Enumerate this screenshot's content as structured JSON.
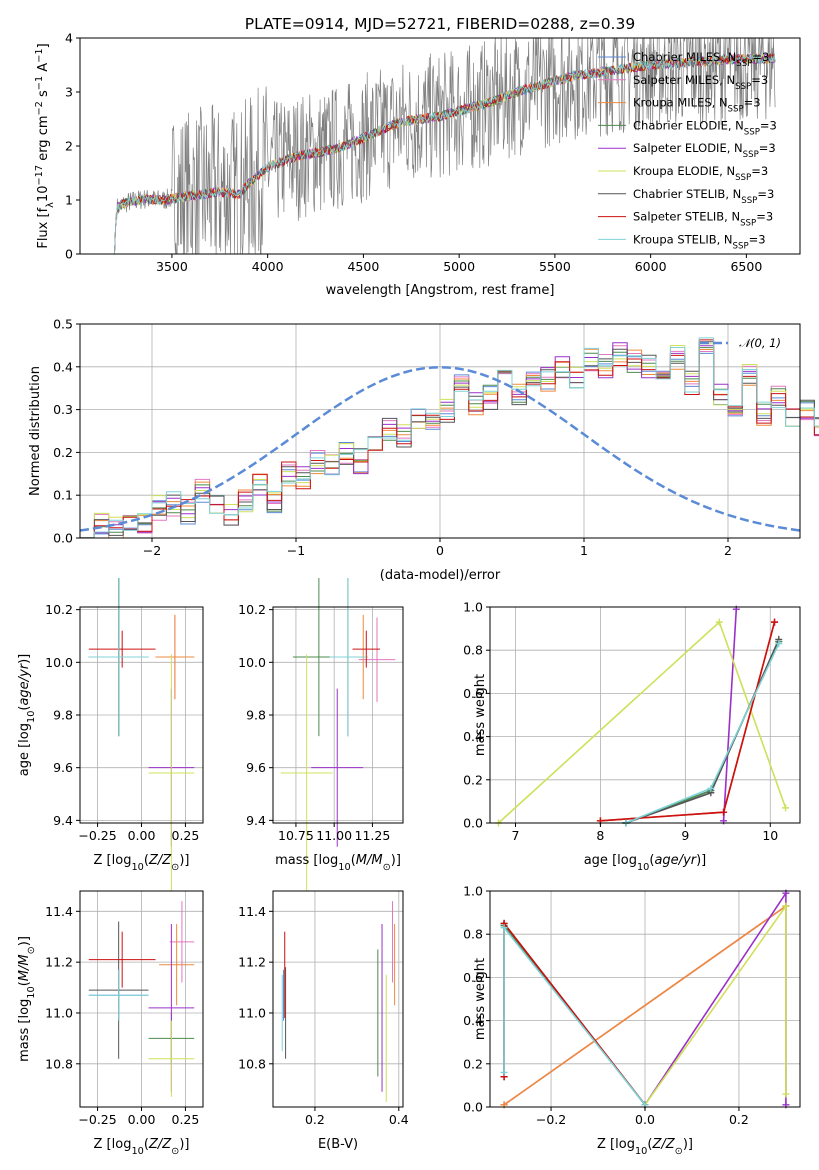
{
  "figure_title": "PLATE=0914, MJD=52721, FIBERID=0288, z=0.39",
  "colors": {
    "Chabrier MILES": "#5b8bd6",
    "Salpeter MILES": "#e377c2",
    "Kroupa MILES": "#ee8a3c",
    "Chabrier ELODIE": "#4e8a4e",
    "Salpeter ELODIE": "#9b30c9",
    "Kroupa ELODIE": "#cfe05a",
    "Chabrier STELIB": "#555555",
    "Salpeter STELIB": "#cc1111",
    "Kroupa STELIB": "#7fd3d6",
    "data": "#808080",
    "normal": "#5b8bd6"
  },
  "chart_data": [
    {
      "id": "spectrum",
      "type": "line",
      "title": "PLATE=0914, MJD=52721, FIBERID=0288, z=0.39",
      "xlabel": "wavelength [Angstrom, rest frame]",
      "ylabel": "Flux [f_λ 10^-17 erg cm^-2 s^-1 A^-1]",
      "xlim": [
        3020,
        6780
      ],
      "ylim": [
        0,
        4
      ],
      "xticks": [
        "3500",
        "4000",
        "4500",
        "5000",
        "5500",
        "6000",
        "6500"
      ],
      "yticks": [
        "0",
        "1",
        "2",
        "3",
        "4"
      ],
      "legend_position": "upper right",
      "grid": false,
      "legend": [
        "Chabrier MILES, N_SSP=3",
        "Salpeter MILES, N_SSP=3",
        "Kroupa MILES, N_SSP=3",
        "Chabrier ELODIE, N_SSP=3",
        "Salpeter ELODIE, N_SSP=3",
        "Kroupa ELODIE, N_SSP=3",
        "Chabrier STELIB, N_SSP=3",
        "Salpeter STELIB, N_SSP=3",
        "Kroupa STELIB, N_SSP=3"
      ],
      "model_continuum": [
        [
          3200,
          0.0
        ],
        [
          3210,
          0.85
        ],
        [
          3260,
          0.95
        ],
        [
          3350,
          1.02
        ],
        [
          3450,
          1.0
        ],
        [
          3550,
          1.05
        ],
        [
          3650,
          1.1
        ],
        [
          3750,
          1.15
        ],
        [
          3850,
          1.1
        ],
        [
          3900,
          1.3
        ],
        [
          3950,
          1.45
        ],
        [
          4000,
          1.6
        ],
        [
          4100,
          1.75
        ],
        [
          4200,
          1.85
        ],
        [
          4300,
          1.9
        ],
        [
          4400,
          2.0
        ],
        [
          4500,
          2.15
        ],
        [
          4600,
          2.3
        ],
        [
          4700,
          2.45
        ],
        [
          4800,
          2.5
        ],
        [
          4900,
          2.55
        ],
        [
          5000,
          2.65
        ],
        [
          5100,
          2.75
        ],
        [
          5200,
          2.85
        ],
        [
          5300,
          3.0
        ],
        [
          5400,
          3.1
        ],
        [
          5500,
          3.2
        ],
        [
          5600,
          3.3
        ],
        [
          5700,
          3.35
        ],
        [
          5800,
          3.4
        ],
        [
          5900,
          3.45
        ],
        [
          6000,
          3.5
        ],
        [
          6200,
          3.55
        ],
        [
          6400,
          3.6
        ],
        [
          6600,
          3.62
        ]
      ],
      "data_noise": "grey observed spectrum with large scatter (roughly +-1.5) around the models above 3500 A"
    },
    {
      "id": "residuals",
      "type": "bar",
      "xlabel": "(data-model)/error",
      "ylabel": "Normed distribution",
      "xlim": [
        -2.5,
        2.5
      ],
      "ylim": [
        0,
        0.5
      ],
      "xticks": [
        "−2",
        "−1",
        "0",
        "1",
        "2"
      ],
      "yticks": [
        "0.0",
        "0.1",
        "0.2",
        "0.3",
        "0.4",
        "0.5"
      ],
      "grid": true,
      "legend": [
        "𝒩(0, 1)"
      ],
      "legend_position": "upper right",
      "bin_width": 0.1,
      "bin_start": -2.5,
      "histogram_values": [
        0.03,
        0.035,
        0.025,
        0.04,
        0.03,
        0.07,
        0.08,
        0.06,
        0.11,
        0.07,
        0.055,
        0.09,
        0.12,
        0.085,
        0.15,
        0.14,
        0.18,
        0.165,
        0.2,
        0.18,
        0.21,
        0.25,
        0.24,
        0.28,
        0.27,
        0.3,
        0.36,
        0.31,
        0.33,
        0.37,
        0.34,
        0.38,
        0.37,
        0.4,
        0.38,
        0.42,
        0.4,
        0.43,
        0.41,
        0.4,
        0.38,
        0.42,
        0.36,
        0.44,
        0.33,
        0.3,
        0.38,
        0.29,
        0.33,
        0.28,
        0.3,
        0.26,
        0.27,
        0.25,
        0.22,
        0.2,
        0.21,
        0.18,
        0.2,
        0.15,
        0.14,
        0.12,
        0.13,
        0.1,
        0.08,
        0.09,
        0.06,
        0.07,
        0.05,
        0.06,
        0.05,
        0.045,
        0.05,
        0.04,
        0.06,
        0.05,
        0.04,
        0.045,
        0.04,
        0.035
      ]
    },
    {
      "id": "age_vs_Z",
      "type": "scatter",
      "xlabel": "Z [log10(Z/Z☉)]",
      "ylabel": "age [log10(age/yr)]",
      "xlim": [
        -0.35,
        0.35
      ],
      "ylim": [
        9.39,
        10.21
      ],
      "xticks": [
        "−0.25",
        "0.00",
        "0.25"
      ],
      "yticks": [
        "9.4",
        "9.6",
        "9.8",
        "10.0",
        "10.2"
      ],
      "grid": true,
      "points": [
        {
          "model": "Chabrier MILES",
          "x": -0.13,
          "xerr": 0.17,
          "y": 10.02,
          "yerr": 0.3
        },
        {
          "model": "Salpeter MILES",
          "x": 0.19,
          "xerr": 0.11,
          "y": 10.02,
          "yerr": 0.16
        },
        {
          "model": "Kroupa MILES",
          "x": 0.19,
          "xerr": 0.11,
          "y": 10.02,
          "yerr": 0.16
        },
        {
          "model": "Chabrier ELODIE",
          "x": -0.13,
          "xerr": 0.17,
          "y": 10.02,
          "yerr": 0.3
        },
        {
          "model": "Salpeter ELODIE",
          "x": 0.17,
          "xerr": 0.13,
          "y": 9.6,
          "yerr": 0.3
        },
        {
          "model": "Kroupa ELODIE",
          "x": 0.17,
          "xerr": 0.13,
          "y": 9.58,
          "yerr": 0.45
        },
        {
          "model": "Chabrier STELIB",
          "x": -0.13,
          "xerr": 0.17,
          "y": 10.02,
          "yerr": 0.3
        },
        {
          "model": "Salpeter STELIB",
          "x": -0.11,
          "xerr": 0.19,
          "y": 10.05,
          "yerr": 0.07
        },
        {
          "model": "Kroupa STELIB",
          "x": -0.13,
          "xerr": 0.17,
          "y": 10.02,
          "yerr": 0.3
        }
      ]
    },
    {
      "id": "age_vs_mass",
      "type": "scatter",
      "xlabel": "mass [log10(M/M☉)]",
      "ylabel": "",
      "xlim": [
        10.6,
        11.45
      ],
      "ylim": [
        9.39,
        10.21
      ],
      "xticks": [
        "10.75",
        "11.00",
        "11.25"
      ],
      "yticks": [
        "9.4",
        "9.6",
        "9.8",
        "10.0",
        "10.2"
      ],
      "grid": true,
      "points": [
        {
          "model": "Chabrier MILES",
          "x": 11.09,
          "xerr": 0.12,
          "y": 10.02,
          "yerr": 0.3
        },
        {
          "model": "Salpeter MILES",
          "x": 11.28,
          "xerr": 0.12,
          "y": 10.01,
          "yerr": 0.16
        },
        {
          "model": "Kroupa MILES",
          "x": 11.19,
          "xerr": 0.03,
          "y": 10.02,
          "yerr": 0.16
        },
        {
          "model": "Chabrier ELODIE",
          "x": 10.9,
          "xerr": 0.17,
          "y": 10.02,
          "yerr": 0.3
        },
        {
          "model": "Salpeter ELODIE",
          "x": 11.02,
          "xerr": 0.17,
          "y": 9.6,
          "yerr": 0.3
        },
        {
          "model": "Kroupa ELODIE",
          "x": 10.82,
          "xerr": 0.17,
          "y": 9.58,
          "yerr": 0.45
        },
        {
          "model": "Chabrier STELIB",
          "x": 11.09,
          "xerr": 0.07,
          "y": 10.02,
          "yerr": 0.3
        },
        {
          "model": "Salpeter STELIB",
          "x": 11.21,
          "xerr": 0.09,
          "y": 10.05,
          "yerr": 0.07
        },
        {
          "model": "Kroupa STELIB",
          "x": 11.09,
          "xerr": 0.12,
          "y": 10.02,
          "yerr": 0.3
        }
      ]
    },
    {
      "id": "mass_weight_vs_age",
      "type": "line",
      "xlabel": "age [log10(age/yr)]",
      "ylabel": "mass weight",
      "xlim": [
        6.7,
        10.35
      ],
      "ylim": [
        0,
        1
      ],
      "xticks": [
        "7",
        "8",
        "9",
        "10"
      ],
      "yticks": [
        "0.0",
        "0.2",
        "0.4",
        "0.6",
        "0.8",
        "1.0"
      ],
      "grid": true,
      "series": [
        {
          "name": "Chabrier MILES",
          "x": [
            8.3,
            9.3,
            10.1
          ],
          "y": [
            0.0,
            0.15,
            0.84
          ]
        },
        {
          "name": "Salpeter MILES",
          "x": [
            8.0,
            9.45,
            10.05
          ],
          "y": [
            0.01,
            0.05,
            0.93
          ]
        },
        {
          "name": "Kroupa MILES",
          "x": [
            8.0,
            9.45,
            10.05
          ],
          "y": [
            0.01,
            0.05,
            0.93
          ]
        },
        {
          "name": "Chabrier ELODIE",
          "x": [
            8.3,
            9.3,
            10.1
          ],
          "y": [
            0.0,
            0.15,
            0.84
          ]
        },
        {
          "name": "Salpeter ELODIE",
          "x": [
            9.45,
            9.6
          ],
          "y": [
            0.01,
            0.99
          ]
        },
        {
          "name": "Kroupa ELODIE",
          "x": [
            6.8,
            9.4,
            10.18
          ],
          "y": [
            0.0,
            0.93,
            0.07
          ]
        },
        {
          "name": "Chabrier STELIB",
          "x": [
            8.3,
            9.3,
            10.1
          ],
          "y": [
            0.0,
            0.14,
            0.85
          ]
        },
        {
          "name": "Salpeter STELIB",
          "x": [
            8.0,
            9.45,
            10.05
          ],
          "y": [
            0.01,
            0.05,
            0.93
          ]
        },
        {
          "name": "Kroupa STELIB",
          "x": [
            8.3,
            9.3,
            10.1
          ],
          "y": [
            0.0,
            0.16,
            0.83
          ]
        }
      ]
    },
    {
      "id": "mass_vs_Z",
      "type": "scatter",
      "xlabel": "Z [log10(Z/Z☉)]",
      "ylabel": "mass [log10(M/M☉)]",
      "xlim": [
        -0.35,
        0.35
      ],
      "ylim": [
        10.63,
        11.48
      ],
      "xticks": [
        "−0.25",
        "0.00",
        "0.25"
      ],
      "yticks": [
        "10.8",
        "11.0",
        "11.2",
        "11.4"
      ],
      "grid": true,
      "points": [
        {
          "model": "Chabrier MILES",
          "x": -0.13,
          "xerr": 0.17,
          "y": 11.07,
          "yerr": 0.1
        },
        {
          "model": "Salpeter MILES",
          "x": 0.23,
          "xerr": 0.07,
          "y": 11.28,
          "yerr": 0.16
        },
        {
          "model": "Kroupa MILES",
          "x": 0.2,
          "xerr": 0.1,
          "y": 11.19,
          "yerr": 0.16
        },
        {
          "model": "Chabrier ELODIE",
          "x": 0.17,
          "xerr": 0.13,
          "y": 10.9,
          "yerr": 0.1
        },
        {
          "model": "Salpeter ELODIE",
          "x": 0.17,
          "xerr": 0.13,
          "y": 11.02,
          "yerr": 0.33
        },
        {
          "model": "Kroupa ELODIE",
          "x": 0.17,
          "xerr": 0.13,
          "y": 10.82,
          "yerr": 0.15
        },
        {
          "model": "Chabrier STELIB",
          "x": -0.13,
          "xerr": 0.17,
          "y": 11.09,
          "yerr": 0.27
        },
        {
          "model": "Salpeter STELIB",
          "x": -0.11,
          "xerr": 0.19,
          "y": 11.21,
          "yerr": 0.11
        },
        {
          "model": "Kroupa STELIB",
          "x": -0.13,
          "xerr": 0.17,
          "y": 11.07,
          "yerr": 0.1
        }
      ]
    },
    {
      "id": "mass_vs_ebv",
      "type": "scatter",
      "xlabel": "E(B-V)",
      "ylabel": "",
      "xlim": [
        0.1,
        0.41
      ],
      "ylim": [
        10.63,
        11.48
      ],
      "xticks": [
        "0.2",
        "0.4"
      ],
      "yticks": [
        "10.8",
        "11.0",
        "11.2",
        "11.4"
      ],
      "grid": true,
      "points": [
        {
          "model": "Chabrier MILES",
          "x": 0.125,
          "y": 11.07,
          "yerr": 0.1
        },
        {
          "model": "Salpeter MILES",
          "x": 0.385,
          "y": 11.28,
          "yerr": 0.16
        },
        {
          "model": "Kroupa MILES",
          "x": 0.39,
          "y": 11.19,
          "yerr": 0.16
        },
        {
          "model": "Chabrier ELODIE",
          "x": 0.35,
          "y": 11.0,
          "yerr": 0.25
        },
        {
          "model": "Salpeter ELODIE",
          "x": 0.36,
          "y": 11.02,
          "yerr": 0.33
        },
        {
          "model": "Kroupa ELODIE",
          "x": 0.37,
          "y": 10.9,
          "yerr": 0.25
        },
        {
          "model": "Chabrier STELIB",
          "x": 0.13,
          "y": 11.0,
          "yerr": 0.18
        },
        {
          "model": "Salpeter STELIB",
          "x": 0.128,
          "y": 11.15,
          "yerr": 0.17
        },
        {
          "model": "Kroupa STELIB",
          "x": 0.122,
          "y": 11.0,
          "yerr": 0.15
        }
      ]
    },
    {
      "id": "mass_weight_vs_Z",
      "type": "line",
      "xlabel": "Z [log10(Z/Z☉)]",
      "ylabel": "mass weight",
      "xlim": [
        -0.33,
        0.33
      ],
      "ylim": [
        0,
        1
      ],
      "xticks": [
        "−0.2",
        "0.0",
        "0.2"
      ],
      "yticks": [
        "0.0",
        "0.2",
        "0.4",
        "0.6",
        "0.8",
        "1.0"
      ],
      "grid": true,
      "series": [
        {
          "name": "Chabrier MILES",
          "x": [
            -0.3,
            0.0
          ],
          "y": [
            0.84,
            0.01
          ]
        },
        {
          "name": "Salpeter MILES",
          "x": [
            -0.3,
            0.3
          ],
          "y": [
            0.01,
            0.93
          ]
        },
        {
          "name": "Kroupa MILES",
          "x": [
            -0.3,
            0.3
          ],
          "y": [
            0.01,
            0.93
          ]
        },
        {
          "name": "Chabrier ELODIE",
          "x": [
            -0.3,
            0.0
          ],
          "y": [
            0.84,
            0.01
          ]
        },
        {
          "name": "Salpeter ELODIE",
          "x": [
            0.0,
            0.3,
            0.3
          ],
          "y": [
            0.01,
            0.99,
            0.01
          ]
        },
        {
          "name": "Kroupa ELODIE",
          "x": [
            0.0,
            0.3,
            0.3
          ],
          "y": [
            0.01,
            0.93,
            0.06
          ]
        },
        {
          "name": "Chabrier STELIB",
          "x": [
            -0.3,
            -0.3,
            0.0
          ],
          "y": [
            0.14,
            0.85,
            0.01
          ]
        },
        {
          "name": "Salpeter STELIB",
          "x": [
            -0.3,
            -0.3,
            0.0
          ],
          "y": [
            0.14,
            0.85,
            0.01
          ]
        },
        {
          "name": "Kroupa STELIB",
          "x": [
            -0.3,
            -0.3,
            0.0
          ],
          "y": [
            0.16,
            0.83,
            0.01
          ]
        }
      ]
    }
  ]
}
